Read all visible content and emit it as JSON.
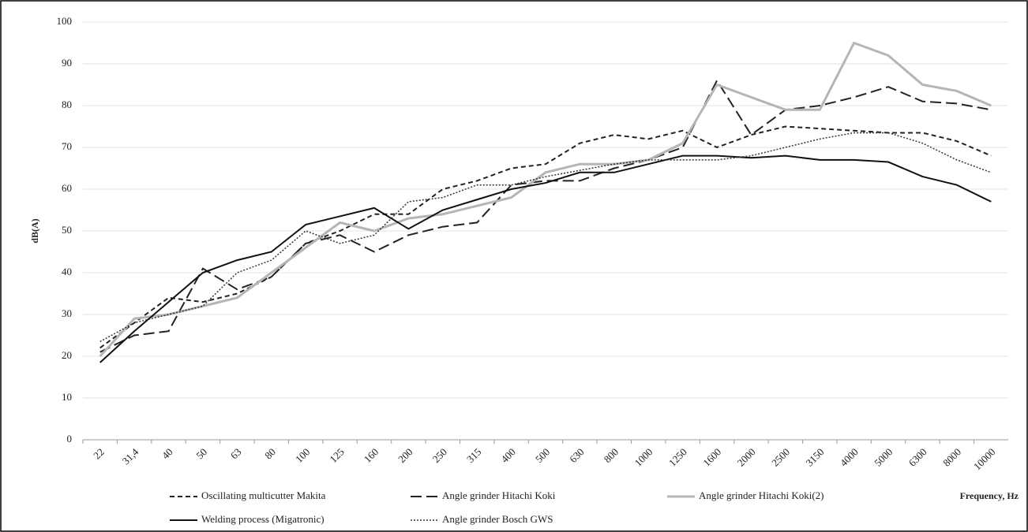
{
  "chart_data": {
    "type": "line",
    "xlabel": "Frequency, Hz",
    "ylabel": "dB(A)",
    "categories": [
      "22",
      "31,4",
      "40",
      "50",
      "63",
      "80",
      "100",
      "125",
      "160",
      "200",
      "250",
      "315",
      "400",
      "500",
      "630",
      "800",
      "1000",
      "1250",
      "1600",
      "2000",
      "2500",
      "3150",
      "4000",
      "5000",
      "6300",
      "8000",
      "10000"
    ],
    "ylim": [
      0,
      100
    ],
    "yticks": [
      0,
      10,
      20,
      30,
      40,
      50,
      60,
      70,
      80,
      90,
      100
    ],
    "grid": true,
    "series": [
      {
        "name": "Oscillating multicutter Makita",
        "color": "#222222",
        "dash": "6,4",
        "width": 2,
        "values": [
          22,
          28,
          34,
          33,
          35,
          39,
          47,
          50,
          54,
          54,
          60,
          62,
          65,
          66,
          71,
          73,
          72,
          74,
          70,
          73,
          75,
          74.5,
          74,
          73.5,
          73.5,
          71.5,
          68
        ]
      },
      {
        "name": "Angle grinder Hitachi Koki",
        "color": "#222222",
        "dash": "14,6",
        "width": 2,
        "values": [
          21,
          25,
          26,
          41,
          36,
          39,
          47,
          49,
          45,
          49,
          51,
          52,
          61,
          62,
          62,
          65,
          67,
          70,
          86,
          73,
          79,
          80,
          82,
          84.5,
          81,
          80.5,
          79
        ]
      },
      {
        "name": "Angle grinder Hitachi Koki(2)",
        "color": "#b5b5b5",
        "dash": "",
        "width": 3,
        "values": [
          20,
          29,
          30,
          32,
          34,
          40,
          46,
          52,
          50,
          53,
          54,
          56,
          58,
          64,
          66,
          66,
          67,
          71,
          85,
          82,
          79,
          79,
          95,
          92,
          85,
          83.5,
          80
        ]
      },
      {
        "name": "Welding process (Migatronic)",
        "color": "#111111",
        "dash": "",
        "width": 2,
        "values": [
          18.5,
          26,
          33,
          40,
          43,
          45,
          51.5,
          53.5,
          55.5,
          50.5,
          55,
          57.5,
          60,
          61.5,
          64,
          64,
          66,
          68,
          68,
          67.5,
          68,
          67,
          67,
          66.5,
          63,
          61,
          57
        ]
      },
      {
        "name": "Angle grinder Bosch GWS",
        "color": "#333333",
        "dash": "2,2",
        "width": 1.5,
        "values": [
          23.5,
          28,
          30,
          32,
          40,
          43,
          50,
          47,
          49,
          57,
          58,
          61,
          61,
          63,
          64.5,
          66,
          67,
          67,
          67,
          68,
          70,
          72,
          73.5,
          73.5,
          71,
          67,
          64
        ]
      }
    ]
  }
}
